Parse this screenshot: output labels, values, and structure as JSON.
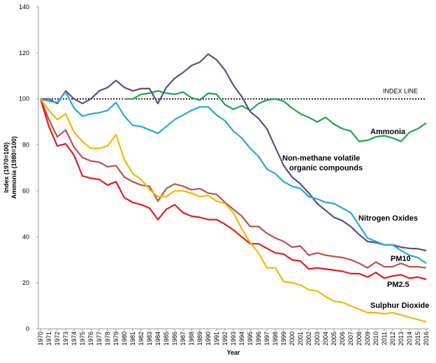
{
  "chart_data": {
    "type": "line",
    "x_label": "Year",
    "y_label": [
      "Index (1970=100)",
      "Ammonia (1980=100)"
    ],
    "x": [
      1970,
      1971,
      1972,
      1973,
      1974,
      1975,
      1976,
      1977,
      1978,
      1979,
      1980,
      1981,
      1982,
      1983,
      1984,
      1985,
      1986,
      1987,
      1988,
      1989,
      1990,
      1991,
      1992,
      1993,
      1994,
      1995,
      1996,
      1997,
      1998,
      1999,
      2000,
      2001,
      2002,
      2003,
      2004,
      2005,
      2006,
      2007,
      2008,
      2009,
      2010,
      2011,
      2012,
      2013,
      2014,
      2015,
      2016
    ],
    "xlim": [
      1970,
      2016
    ],
    "ylim": [
      0,
      140
    ],
    "yticks": [
      0,
      20,
      40,
      60,
      80,
      100,
      120,
      140
    ],
    "index_line": {
      "value": 100,
      "label": "INDEX LINE"
    },
    "series": [
      {
        "name": "Ammonia",
        "color": "#1ca64b",
        "values": [
          null,
          null,
          null,
          null,
          null,
          null,
          null,
          null,
          null,
          null,
          100,
          100,
          102,
          102.5,
          103.5,
          102.5,
          102,
          103,
          100.5,
          99.5,
          102.5,
          102,
          97.5,
          95.5,
          97,
          95,
          98,
          99.5,
          100,
          99,
          96,
          93.5,
          92,
          90,
          92,
          89,
          87,
          86,
          81.5,
          82,
          83.5,
          84,
          83,
          81.5,
          85.5,
          87,
          89.5
        ]
      },
      {
        "name": "Non-methane volatile organic compounds",
        "color": "#5a4d86",
        "values": [
          100,
          100,
          98,
          103.5,
          100,
          98,
          100,
          103.5,
          105,
          108,
          105,
          103.5,
          104.5,
          104.5,
          98,
          105,
          109,
          111.5,
          114.5,
          116,
          119.5,
          117,
          112.5,
          106,
          101,
          94.5,
          91.5,
          87,
          79,
          71,
          66,
          63,
          59,
          54.5,
          51.5,
          48.5,
          47,
          44.5,
          41,
          38,
          37.5,
          36.5,
          36.5,
          35.5,
          35,
          34.8,
          34
        ]
      },
      {
        "name": "Nitrogen Oxides",
        "color": "#1fa9e1",
        "values": [
          100,
          99,
          98.5,
          103,
          96,
          92.5,
          93.5,
          94,
          95,
          98.5,
          92.5,
          88.5,
          88,
          86.5,
          85,
          88,
          91,
          93,
          95,
          96.5,
          96.5,
          93,
          90.5,
          86,
          83,
          78.5,
          75,
          69.5,
          67.5,
          64,
          62,
          61,
          57.5,
          56.5,
          55,
          54.5,
          52.5,
          50.5,
          45,
          39.5,
          38,
          36.5,
          36.5,
          34,
          32,
          31,
          28.5
        ]
      },
      {
        "name": "PM10",
        "color": "#c0504d",
        "values": [
          100,
          91,
          83.5,
          86.5,
          79,
          74.5,
          73,
          72.5,
          70.5,
          71,
          66,
          64,
          62.5,
          62,
          55.5,
          61,
          63,
          62,
          60.5,
          61,
          59,
          58.5,
          55,
          52,
          49,
          44.5,
          44.5,
          41.5,
          39.5,
          38,
          35.5,
          36,
          32,
          33,
          32,
          31.5,
          31,
          30,
          28.5,
          26.5,
          29,
          27,
          27,
          28.5,
          27,
          27,
          26.5
        ]
      },
      {
        "name": "PM2.5",
        "color": "#e01b1e",
        "values": [
          100,
          88,
          79.5,
          80.5,
          75.5,
          66.5,
          65.5,
          65,
          62.5,
          64,
          57,
          55,
          54,
          52.5,
          47.5,
          52,
          54,
          50.5,
          49,
          48.5,
          47.5,
          47.5,
          45.5,
          43,
          40,
          37,
          37,
          35,
          33,
          32.5,
          30,
          29.5,
          26,
          26.5,
          26,
          25.5,
          25,
          24,
          24,
          22.5,
          24.5,
          22,
          23,
          23.5,
          22,
          22.5,
          21.5
        ]
      },
      {
        "name": "Sulphur Dioxide",
        "color": "#f5b700",
        "values": [
          100,
          95,
          91,
          93.5,
          85.5,
          81.5,
          78.5,
          78.5,
          79.5,
          84.5,
          73.5,
          67.5,
          65,
          60.5,
          57.5,
          57.5,
          60,
          60,
          59,
          57.5,
          58,
          55.5,
          54.5,
          50.5,
          43.5,
          37.5,
          33,
          26.5,
          26.5,
          20.5,
          20,
          19,
          17,
          16.5,
          14,
          12,
          11.5,
          10,
          8.5,
          7,
          7,
          6.5,
          7,
          6,
          5,
          4,
          3
        ]
      }
    ]
  }
}
